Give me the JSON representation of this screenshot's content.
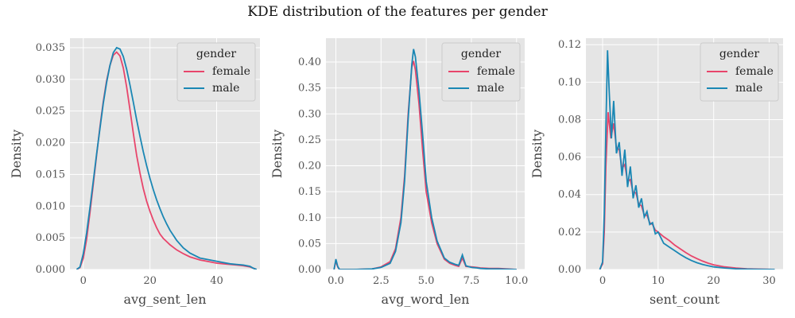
{
  "title": "KDE distribution of the features per gender",
  "colors": {
    "female": "#e8456b",
    "male": "#1a87b4",
    "panel_bg": "#e5e5e5",
    "grid": "#ffffff"
  },
  "chart_data": [
    {
      "type": "line",
      "xlabel": "avg_sent_len",
      "ylabel": "Density",
      "xlim": [
        -4,
        53
      ],
      "ylim": [
        0,
        0.0365
      ],
      "xticks": [
        0,
        20,
        40
      ],
      "yticks": [
        0.0,
        0.005,
        0.01,
        0.015,
        0.02,
        0.025,
        0.03,
        0.035
      ],
      "ytick_labels": [
        "0.000",
        "0.005",
        "0.010",
        "0.015",
        "0.020",
        "0.025",
        "0.030",
        "0.035"
      ],
      "xtick_labels": [
        "0",
        "20",
        "40"
      ],
      "grid": true,
      "legend": {
        "title": "gender",
        "placement": "top-right"
      },
      "series": [
        {
          "name": "female",
          "color": "#e8456b",
          "x": [
            -2,
            -1,
            0,
            1,
            2,
            3,
            4,
            5,
            6,
            7,
            8,
            9,
            10,
            11,
            12,
            13,
            14,
            15,
            16,
            17,
            18,
            19,
            20,
            21,
            22,
            23,
            24,
            25,
            26,
            28,
            30,
            32,
            35,
            38,
            40,
            42,
            44,
            46,
            48,
            50,
            51,
            52
          ],
          "y": [
            0,
            0.0003,
            0.0018,
            0.0048,
            0.009,
            0.0135,
            0.018,
            0.0225,
            0.0265,
            0.0298,
            0.0322,
            0.0338,
            0.0343,
            0.0337,
            0.0318,
            0.0288,
            0.0252,
            0.0215,
            0.018,
            0.0152,
            0.0128,
            0.0108,
            0.0092,
            0.0078,
            0.0066,
            0.0056,
            0.0049,
            0.0044,
            0.0039,
            0.0031,
            0.0025,
            0.002,
            0.0015,
            0.0012,
            0.001,
            0.0009,
            0.0008,
            0.0007,
            0.0006,
            0.0004,
            0.0002,
            0
          ]
        },
        {
          "name": "male",
          "color": "#1a87b4",
          "x": [
            -2,
            -1,
            0,
            1,
            2,
            3,
            4,
            5,
            6,
            7,
            8,
            9,
            10,
            11,
            12,
            13,
            14,
            15,
            16,
            17,
            18,
            19,
            20,
            21,
            22,
            23,
            24,
            25,
            26,
            28,
            30,
            32,
            35,
            38,
            40,
            42,
            44,
            46,
            48,
            50,
            51,
            52
          ],
          "y": [
            0,
            0.0004,
            0.0025,
            0.0058,
            0.0098,
            0.014,
            0.0182,
            0.0222,
            0.0262,
            0.0295,
            0.0322,
            0.0342,
            0.035,
            0.0348,
            0.0336,
            0.0316,
            0.0291,
            0.0264,
            0.0236,
            0.021,
            0.0186,
            0.0164,
            0.0144,
            0.0126,
            0.011,
            0.0096,
            0.0083,
            0.0072,
            0.0062,
            0.0046,
            0.0034,
            0.0026,
            0.0018,
            0.0015,
            0.0013,
            0.0011,
            0.0009,
            0.0008,
            0.0007,
            0.0005,
            0.0002,
            0
          ]
        }
      ]
    },
    {
      "type": "line",
      "xlabel": "avg_word_len",
      "ylabel": "Density",
      "xlim": [
        -0.55,
        10.45
      ],
      "ylim": [
        0,
        0.446
      ],
      "xticks": [
        0,
        2.5,
        5.0,
        7.5,
        10.0
      ],
      "xtick_labels": [
        "0.0",
        "2.5",
        "5.0",
        "7.5",
        "10.0"
      ],
      "yticks": [
        0,
        0.05,
        0.1,
        0.15,
        0.2,
        0.25,
        0.3,
        0.35,
        0.4
      ],
      "ytick_labels": [
        "0.00",
        "0.05",
        "0.10",
        "0.15",
        "0.20",
        "0.25",
        "0.30",
        "0.35",
        "0.40"
      ],
      "grid": true,
      "legend": {
        "title": "gender",
        "placement": "top-right"
      },
      "series": [
        {
          "name": "female",
          "color": "#e8456b",
          "x": [
            -0.1,
            0,
            0.1,
            0.2,
            1,
            2,
            2.5,
            3,
            3.3,
            3.6,
            3.8,
            4.0,
            4.2,
            4.3,
            4.4,
            4.6,
            4.8,
            5.0,
            5.3,
            5.6,
            6.0,
            6.3,
            6.6,
            6.8,
            7.0,
            7.2,
            7.5,
            7.8,
            8.0,
            8.5,
            9,
            9.5,
            10
          ],
          "y": [
            0,
            0.016,
            0.005,
            0,
            0,
            0.001,
            0.005,
            0.015,
            0.04,
            0.1,
            0.18,
            0.3,
            0.39,
            0.402,
            0.385,
            0.32,
            0.23,
            0.15,
            0.09,
            0.05,
            0.02,
            0.012,
            0.008,
            0.006,
            0.022,
            0.006,
            0.005,
            0.004,
            0.003,
            0.002,
            0.002,
            0.001,
            0
          ]
        },
        {
          "name": "male",
          "color": "#1a87b4",
          "x": [
            -0.1,
            0,
            0.1,
            0.2,
            1,
            2,
            2.5,
            3,
            3.3,
            3.6,
            3.8,
            4.0,
            4.2,
            4.3,
            4.4,
            4.6,
            4.8,
            5.0,
            5.3,
            5.6,
            6.0,
            6.3,
            6.6,
            6.8,
            7.0,
            7.2,
            7.5,
            7.8,
            8.0,
            8.5,
            9,
            9.5,
            10
          ],
          "y": [
            0,
            0.02,
            0.006,
            0,
            0,
            0.001,
            0.004,
            0.012,
            0.035,
            0.09,
            0.17,
            0.29,
            0.395,
            0.425,
            0.41,
            0.345,
            0.26,
            0.17,
            0.1,
            0.055,
            0.022,
            0.014,
            0.01,
            0.008,
            0.028,
            0.007,
            0.004,
            0.003,
            0.002,
            0.001,
            0.001,
            0.0005,
            0
          ]
        }
      ]
    },
    {
      "type": "line",
      "xlabel": "sent_count",
      "ylabel": "Density",
      "xlim": [
        -3,
        32.5
      ],
      "ylim": [
        0,
        0.1235
      ],
      "xticks": [
        0,
        10,
        20,
        30
      ],
      "xtick_labels": [
        "0",
        "10",
        "20",
        "30"
      ],
      "yticks": [
        0,
        0.02,
        0.04,
        0.06,
        0.08,
        0.1,
        0.12
      ],
      "ytick_labels": [
        "0.00",
        "0.02",
        "0.04",
        "0.06",
        "0.08",
        "0.10",
        "0.12"
      ],
      "grid": true,
      "legend": {
        "title": "gender",
        "placement": "top-right"
      },
      "series": [
        {
          "name": "female",
          "color": "#e8456b",
          "x": [
            -0.5,
            0,
            0.3,
            0.6,
            1,
            1.5,
            2,
            2.5,
            3,
            3.5,
            4,
            4.5,
            5,
            5.5,
            6,
            6.5,
            7,
            7.5,
            8,
            8.5,
            9,
            9.5,
            10,
            11,
            12,
            13,
            14,
            15,
            16,
            17,
            18,
            19,
            20,
            22,
            24,
            26,
            28,
            30,
            31
          ],
          "y": [
            0,
            0.003,
            0.02,
            0.055,
            0.084,
            0.07,
            0.078,
            0.065,
            0.064,
            0.054,
            0.056,
            0.047,
            0.048,
            0.041,
            0.041,
            0.035,
            0.034,
            0.029,
            0.029,
            0.025,
            0.024,
            0.021,
            0.02,
            0.0175,
            0.0155,
            0.013,
            0.011,
            0.009,
            0.0072,
            0.0058,
            0.0045,
            0.0034,
            0.0025,
            0.0014,
            0.0008,
            0.0004,
            0.0002,
            0.0001,
            0
          ]
        },
        {
          "name": "male",
          "color": "#1a87b4",
          "x": [
            -0.5,
            0,
            0.3,
            0.6,
            0.9,
            1.2,
            1.6,
            2,
            2.5,
            3,
            3.5,
            4,
            4.5,
            5,
            5.5,
            6,
            6.5,
            7,
            7.5,
            8,
            8.5,
            9,
            9.5,
            10,
            11,
            12,
            13,
            14,
            15,
            16,
            17,
            18,
            19,
            20,
            22,
            24,
            26,
            28,
            30,
            31
          ],
          "y": [
            0,
            0.004,
            0.03,
            0.075,
            0.117,
            0.095,
            0.07,
            0.09,
            0.062,
            0.068,
            0.05,
            0.064,
            0.044,
            0.055,
            0.038,
            0.045,
            0.033,
            0.038,
            0.028,
            0.031,
            0.024,
            0.025,
            0.019,
            0.02,
            0.014,
            0.012,
            0.01,
            0.008,
            0.0063,
            0.0048,
            0.0036,
            0.0027,
            0.002,
            0.0014,
            0.0008,
            0.0004,
            0.0002,
            0.0001,
            5e-05,
            0
          ]
        }
      ]
    }
  ]
}
